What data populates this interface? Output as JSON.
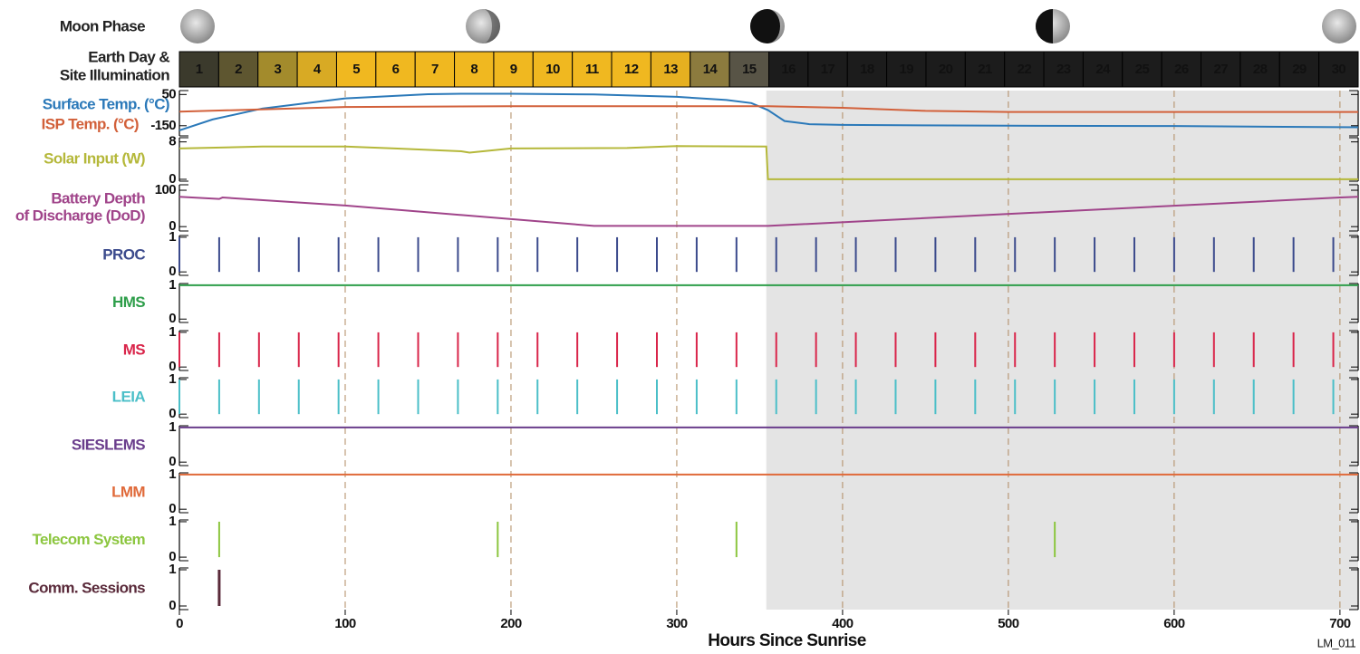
{
  "header": {
    "moon_label": "Moon Phase",
    "day_label": [
      "Earth Day &",
      "Site Illumination"
    ],
    "days": [
      1,
      2,
      3,
      4,
      5,
      6,
      7,
      8,
      9,
      10,
      11,
      12,
      13,
      14,
      15,
      16,
      17,
      18,
      19,
      20,
      21,
      22,
      23,
      24,
      25,
      26,
      27,
      28,
      29,
      30
    ],
    "day_colors": [
      "#3b3a2c",
      "#5e5630",
      "#a38b2c",
      "#d8aa24",
      "#f0b820",
      "#f0b820",
      "#f0b820",
      "#f0b820",
      "#f0b820",
      "#f0b820",
      "#f0b820",
      "#f0b820",
      "#e6b020",
      "#8c7b3e",
      "#585446",
      "#1c1c1c",
      "#1c1c1c",
      "#1c1c1c",
      "#1c1c1c",
      "#1c1c1c",
      "#1c1c1c",
      "#1c1c1c",
      "#1c1c1c",
      "#1c1c1c",
      "#1c1c1c",
      "#1c1c1c",
      "#1c1c1c",
      "#1c1c1c",
      "#1c1c1c",
      "#1c1c1c"
    ]
  },
  "chart_data": {
    "type": "timeline",
    "xlim": [
      0,
      711
    ],
    "xticks": [
      0,
      100,
      200,
      300,
      400,
      500,
      600,
      700
    ],
    "xlabel": "Hours Since Sunrise",
    "grid": true,
    "night_shading": [
      354,
      711
    ],
    "panels": [
      {
        "type": "line",
        "ylim": [
          -215,
          75
        ],
        "yticks": [
          50,
          -150
        ],
        "series": [
          {
            "name": "Surface Temp. (°C)",
            "color": "#2b79b9",
            "x": [
              0,
              20,
              50,
              100,
              150,
              170,
              200,
              250,
              300,
              330,
              345,
              355,
              365,
              380,
              400,
              500,
              600,
              711
            ],
            "values": [
              -180,
              -110,
              -40,
              25,
              52,
              55,
              55,
              50,
              35,
              15,
              -5,
              -50,
              -120,
              -140,
              -145,
              -150,
              -152,
              -160
            ]
          },
          {
            "name": "ISP Temp. (°C)",
            "color": "#d2603a",
            "x": [
              0,
              100,
              200,
              355,
              400,
              450,
              500,
              711
            ],
            "values": [
              -60,
              -30,
              -25,
              -25,
              -35,
              -55,
              -62,
              -62
            ]
          }
        ]
      },
      {
        "type": "line",
        "ylim": [
          -0.4,
          8.9
        ],
        "yticks": [
          8,
          0
        ],
        "series": [
          {
            "name": "Solar Input (W)",
            "color": "#b5b83a",
            "x": [
              0,
              50,
              100,
              130,
              170,
              175,
              200,
              270,
              300,
              354,
              355,
              711
            ],
            "values": [
              6.6,
              7.0,
              7.0,
              6.6,
              6.0,
              5.7,
              6.6,
              6.7,
              7.1,
              7.0,
              0,
              0
            ]
          }
        ]
      },
      {
        "type": "line",
        "ylim": [
          -12,
          115
        ],
        "yticks": [
          100,
          0
        ],
        "series": [
          {
            "name": [
              "Battery Depth",
              "of Discharge (DoD)"
            ],
            "color": "#a0448a",
            "x": [
              0,
              24,
              26,
              100,
              250,
              355,
              700,
              711
            ],
            "values": [
              82,
              76,
              80,
              58,
              2,
              2,
              80,
              82
            ]
          }
        ]
      },
      {
        "type": "spikes",
        "ylim": [
          -0.1,
          1.05
        ],
        "yticks": [
          1,
          0
        ],
        "series": [
          {
            "name": "PROC",
            "color": "#3b4a8c",
            "x": [
              0,
              24,
              48,
              72,
              96,
              120,
              144,
              168,
              192,
              216,
              240,
              264,
              288,
              312,
              336,
              360,
              384,
              408,
              432,
              456,
              480,
              504,
              528,
              552,
              576,
              600,
              624,
              648,
              672,
              696
            ],
            "values": [
              1,
              1,
              1,
              1,
              1,
              1,
              1,
              1,
              1,
              1,
              1,
              1,
              1,
              1,
              1,
              1,
              1,
              1,
              1,
              1,
              1,
              1,
              1,
              1,
              1,
              1,
              1,
              1,
              1,
              1
            ]
          }
        ]
      },
      {
        "type": "line",
        "ylim": [
          -0.1,
          1.05
        ],
        "yticks": [
          1,
          0
        ],
        "series": [
          {
            "name": "HMS",
            "color": "#2e9e4a",
            "x": [
              0,
              711
            ],
            "values": [
              1,
              1
            ]
          }
        ]
      },
      {
        "type": "spikes",
        "ylim": [
          -0.1,
          1.05
        ],
        "yticks": [
          1,
          0
        ],
        "series": [
          {
            "name": "MS",
            "color": "#d9254a",
            "x": [
              0,
              24,
              48,
              72,
              96,
              120,
              144,
              168,
              192,
              216,
              240,
              264,
              288,
              312,
              336,
              360,
              384,
              408,
              432,
              456,
              480,
              504,
              528,
              552,
              576,
              600,
              624,
              648,
              672,
              696
            ],
            "values": [
              1,
              1,
              1,
              1,
              1,
              1,
              1,
              1,
              1,
              1,
              1,
              1,
              1,
              1,
              1,
              1,
              1,
              1,
              1,
              1,
              1,
              1,
              1,
              1,
              1,
              1,
              1,
              1,
              1,
              1
            ]
          }
        ]
      },
      {
        "type": "spikes",
        "ylim": [
          -0.1,
          1.05
        ],
        "yticks": [
          1,
          0
        ],
        "series": [
          {
            "name": "LEIA",
            "color": "#4bbfc8",
            "x": [
              0,
              24,
              48,
              72,
              96,
              120,
              144,
              168,
              192,
              216,
              240,
              264,
              288,
              312,
              336,
              360,
              384,
              408,
              432,
              456,
              480,
              504,
              528,
              552,
              576,
              600,
              624,
              648,
              672,
              696
            ],
            "values": [
              1,
              1,
              1,
              1,
              1,
              1,
              1,
              1,
              1,
              1,
              1,
              1,
              1,
              1,
              1,
              1,
              1,
              1,
              1,
              1,
              1,
              1,
              1,
              1,
              1,
              1,
              1,
              1,
              1,
              1
            ]
          }
        ]
      },
      {
        "type": "line",
        "ylim": [
          -0.1,
          1.05
        ],
        "yticks": [
          1,
          0
        ],
        "series": [
          {
            "name": "SIESLEMS",
            "color": "#6a3d8c",
            "x": [
              0,
              711
            ],
            "values": [
              1,
              1
            ]
          }
        ]
      },
      {
        "type": "line",
        "ylim": [
          -0.1,
          1.05
        ],
        "yticks": [
          1,
          0
        ],
        "series": [
          {
            "name": "LMM",
            "color": "#e06a3a",
            "x": [
              0,
              711
            ],
            "values": [
              1,
              1
            ]
          }
        ]
      },
      {
        "type": "spikes",
        "ylim": [
          -0.1,
          1.05
        ],
        "yticks": [
          1,
          0
        ],
        "series": [
          {
            "name": "Telecom System",
            "color": "#8cc63f",
            "x": [
              24,
              192,
              336,
              528
            ],
            "values": [
              1,
              1,
              1,
              1
            ]
          }
        ]
      },
      {
        "type": "spikes",
        "ylim": [
          -0.1,
          1.05
        ],
        "yticks": [
          1,
          0
        ],
        "line_width": 3,
        "series": [
          {
            "name": "Comm. Sessions",
            "color": "#5a2a3a",
            "x": [
              24
            ],
            "values": [
              1
            ]
          }
        ]
      }
    ]
  },
  "figure_id": "LM_011"
}
